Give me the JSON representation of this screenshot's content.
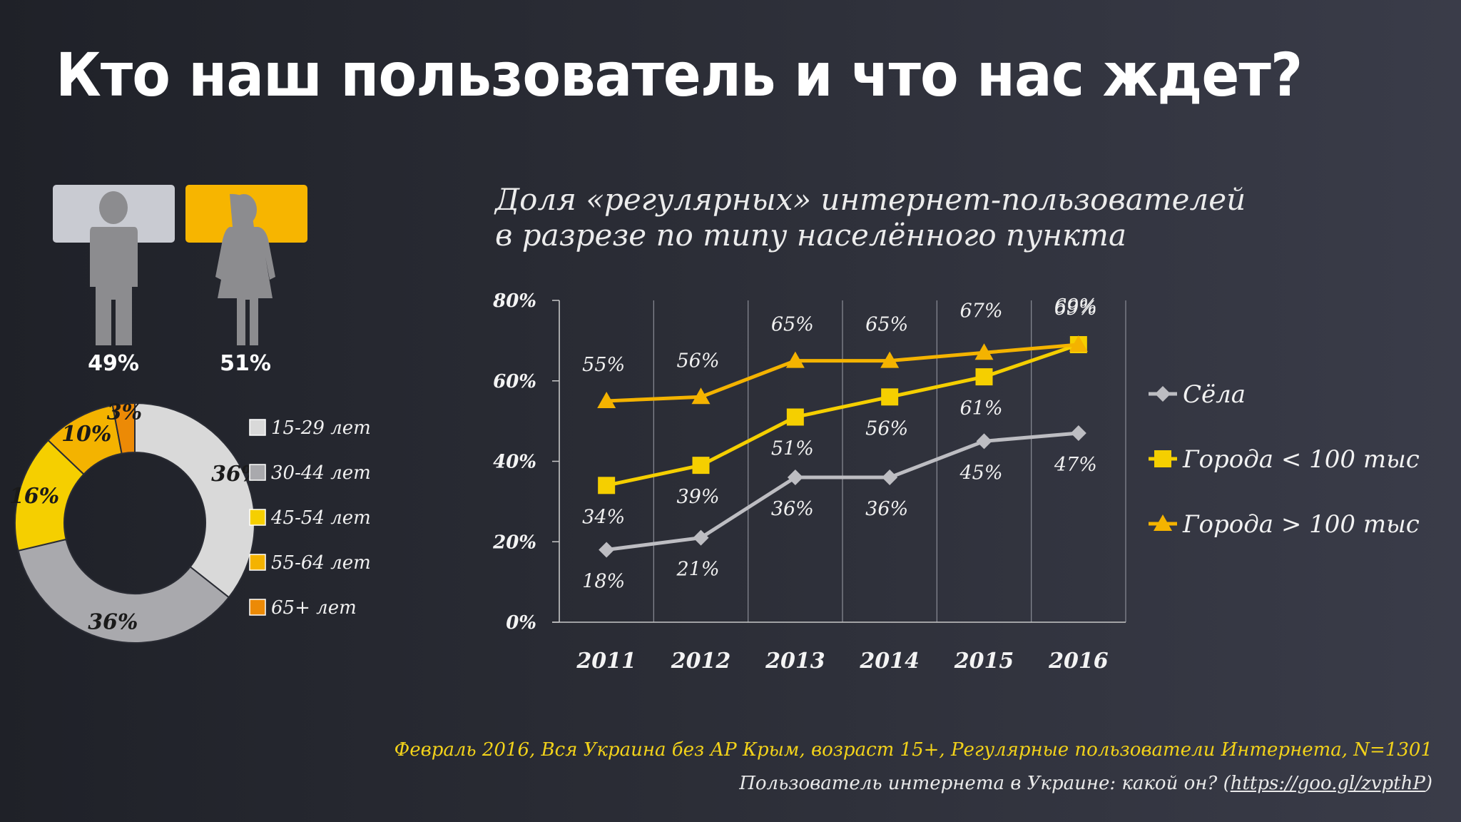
{
  "slide_title": "Кто наш пользователь и что нас ждет?",
  "gender": {
    "male_pct": "49%",
    "female_pct": "51%",
    "male_color": "#c9cbd2",
    "female_color": "#f7b500",
    "male_icon": "man-icon",
    "female_icon": "woman-icon"
  },
  "source_text": "Февраль 2016, Вся Украина без АР Крым, возраст 15+, Регулярные пользователи Интернета, N=1301",
  "reference": {
    "text": "Пользователь интернета в Украине: какой он? (",
    "link": "https://goo.gl/zvpthP",
    "close": ")"
  },
  "chart_data": [
    {
      "type": "pie",
      "title": "",
      "slices": [
        {
          "label": "15-29 лет",
          "value": 36,
          "display": "36%",
          "color": "#d9d9d9"
        },
        {
          "label": "30-44 лет",
          "value": 36,
          "display": "36%",
          "color": "#a9a9ad"
        },
        {
          "label": "45-54 лет",
          "value": 16,
          "display": "16%",
          "color": "#f5cf00"
        },
        {
          "label": "55-64 лет",
          "value": 10,
          "display": "10%",
          "color": "#f4b300"
        },
        {
          "label": "65+ лет",
          "value": 3,
          "display": "3%",
          "color": "#ec8a06"
        }
      ],
      "legend_placement": "right"
    },
    {
      "type": "line",
      "title": "Доля «регулярных» интернет-пользователей в разрезе по типу населённого пункта",
      "categories": [
        "2011",
        "2012",
        "2013",
        "2014",
        "2015",
        "2016"
      ],
      "series": [
        {
          "name": "Сёла",
          "values": [
            18,
            21,
            36,
            36,
            45,
            47
          ],
          "labels": [
            "18%",
            "21%",
            "36%",
            "36%",
            "45%",
            "47%"
          ],
          "color": "#bdbdc2",
          "marker": "diamond"
        },
        {
          "name": "Города < 100 тыс",
          "values": [
            34,
            39,
            51,
            56,
            61,
            69
          ],
          "labels": [
            "34%",
            "39%",
            "51%",
            "56%",
            "61%",
            "69%"
          ],
          "color": "#f5cf00",
          "marker": "square"
        },
        {
          "name": "Города > 100 тыс",
          "values": [
            55,
            56,
            65,
            65,
            67,
            69
          ],
          "labels": [
            "55%",
            "56%",
            "65%",
            "65%",
            "67%",
            "69%"
          ],
          "color": "#f4b300",
          "marker": "triangle"
        }
      ],
      "ylim": [
        0,
        80
      ],
      "y_ticks": [
        "0%",
        "20%",
        "40%",
        "60%",
        "80%"
      ],
      "grid": "vertical",
      "legend_placement": "right"
    }
  ]
}
